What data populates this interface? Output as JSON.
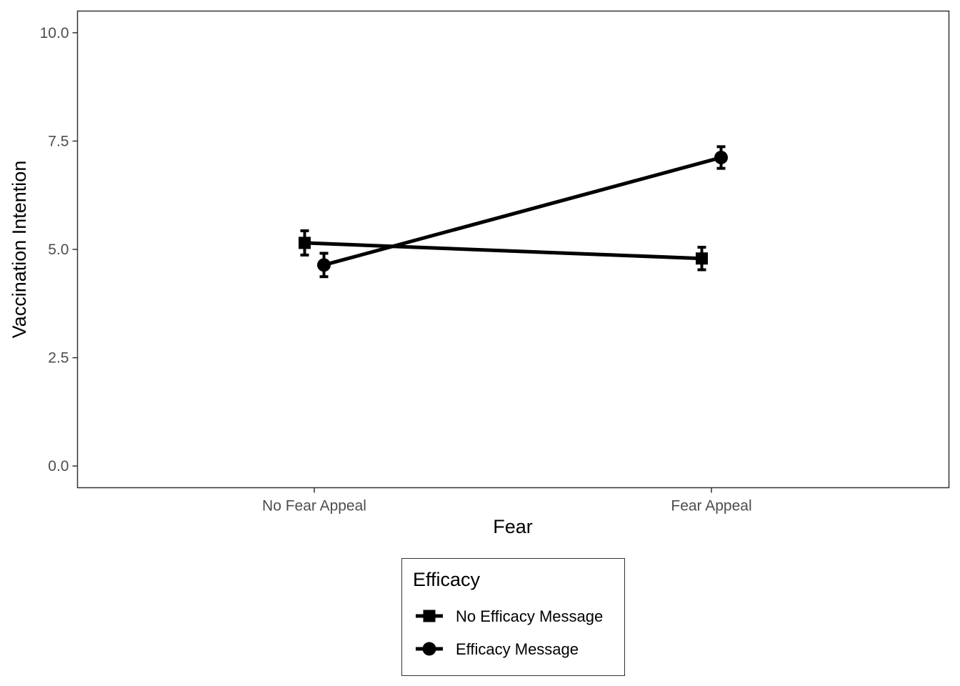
{
  "chart_data": {
    "type": "line",
    "xlabel": "Fear",
    "ylabel": "Vaccination Intention",
    "categories": [
      "No Fear Appeal",
      "Fear Appeal"
    ],
    "ylim": [
      -0.5,
      10.5
    ],
    "yticks": [
      0.0,
      2.5,
      5.0,
      7.5,
      10.0
    ],
    "ytick_labels": [
      "0.0",
      "2.5",
      "5.0",
      "7.5",
      "10.0"
    ],
    "grid": false,
    "legend": {
      "title": "Efficacy",
      "placement": "bottom"
    },
    "series": [
      {
        "name": "No Efficacy Message",
        "marker": "square",
        "color": "#000000",
        "values": [
          5.15,
          4.79
        ],
        "errors": [
          0.28,
          0.26
        ]
      },
      {
        "name": "Efficacy Message",
        "marker": "circle",
        "color": "#000000",
        "values": [
          4.64,
          7.12
        ],
        "errors": [
          0.27,
          0.25
        ]
      }
    ]
  }
}
